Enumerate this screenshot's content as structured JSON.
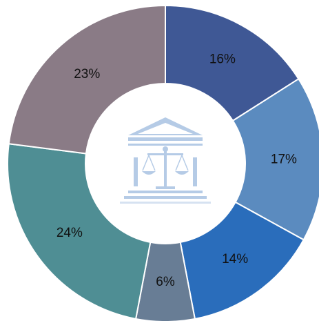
{
  "chart_data": {
    "type": "donut",
    "categories": [
      null,
      null,
      null,
      null,
      null,
      null
    ],
    "values": [
      16,
      17,
      14,
      6,
      24,
      23
    ],
    "value_labels": [
      "16%",
      "17%",
      "14%",
      "6%",
      "24%",
      "23%"
    ],
    "colors": [
      "#3f5895",
      "#5b8bbf",
      "#2a6dbb",
      "#687d95",
      "#4f8e94",
      "#8a7b86"
    ]
  }
}
